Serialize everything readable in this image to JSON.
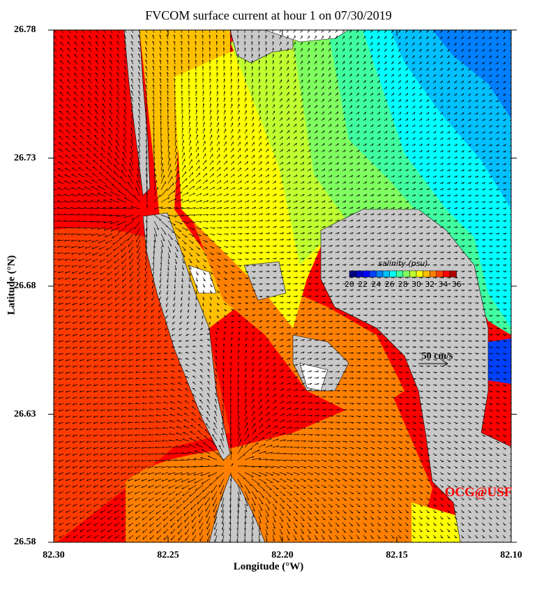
{
  "title": "FVCOM surface current at hour 1 on 07/30/2019",
  "x_axis": {
    "label": "Longitude (°W)",
    "ticks": [
      "82.30",
      "82.25",
      "82.20",
      "82.15",
      "82.10"
    ],
    "range": [
      82.3,
      82.1
    ]
  },
  "y_axis": {
    "label": "Latitude (°N)",
    "ticks": [
      "26.78",
      "26.73",
      "26.68",
      "26.63",
      "26.58"
    ],
    "range": [
      26.58,
      26.78
    ]
  },
  "colorbar": {
    "title": "salinity (psu)",
    "ticks": [
      "20",
      "22",
      "24",
      "26",
      "28",
      "30",
      "32",
      "34",
      "36"
    ],
    "range": [
      20,
      36
    ],
    "colors": [
      "#000080",
      "#0000c8",
      "#0000ff",
      "#0040ff",
      "#0080ff",
      "#00c0ff",
      "#00ffff",
      "#40ffa0",
      "#80ff60",
      "#c0ff30",
      "#ffff00",
      "#ffc000",
      "#ff8000",
      "#ff4000",
      "#ff0000",
      "#b00000"
    ]
  },
  "scale_label": "50 cm/s",
  "credit": "OCG@USF",
  "colors": {
    "land": "#c8c8c8",
    "arrows": "#000000",
    "credit": "#ff0000"
  }
}
